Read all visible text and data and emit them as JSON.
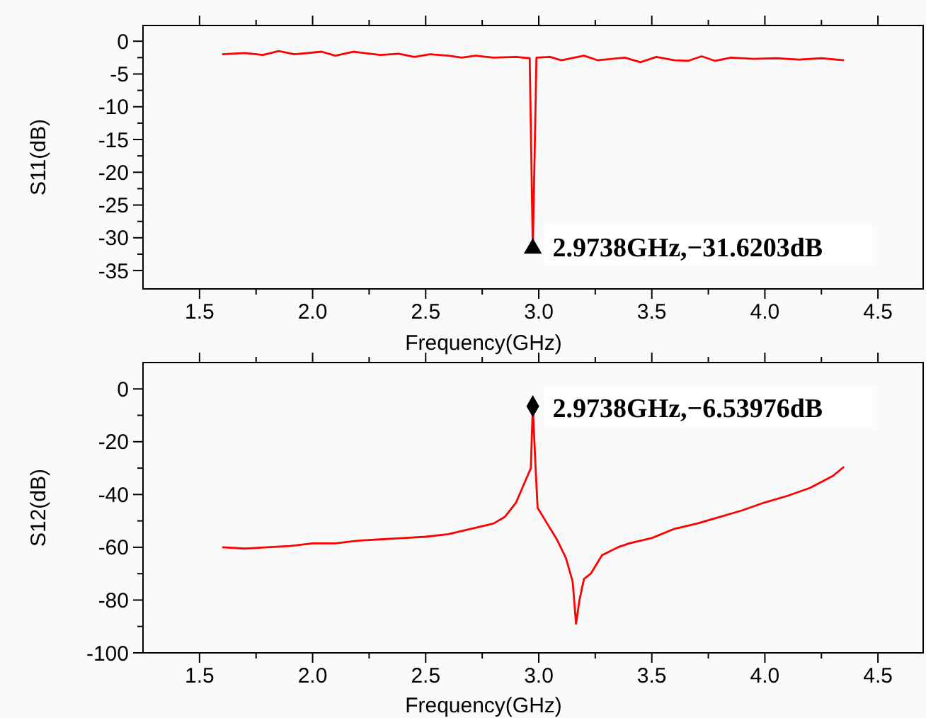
{
  "chart_data": [
    {
      "type": "line",
      "xlabel": "Frequency(GHz)",
      "ylabel": "S11(dB)",
      "xlim": [
        1.25,
        4.7
      ],
      "ylim": [
        -37.8,
        2.4
      ],
      "xticks": [
        1.5,
        {
          "value": 1.75,
          "label": null
        },
        {
          "value": 2,
          "label": "2.0"
        },
        {
          "value": 2.25,
          "label": null
        },
        2.5,
        {
          "value": 2.75,
          "label": null
        },
        {
          "value": 3,
          "label": "3.0"
        },
        {
          "value": 3.25,
          "label": null
        },
        3.5,
        {
          "value": 3.75,
          "label": null
        },
        {
          "value": 4,
          "label": "4.0"
        },
        {
          "value": 4.25,
          "label": null
        },
        4.5
      ],
      "yticks": [
        0,
        {
          "value": -2.5,
          "label": null
        },
        -5,
        {
          "value": -7.5,
          "label": null
        },
        -10,
        {
          "value": -12.5,
          "label": null
        },
        -15,
        {
          "value": -17.5,
          "label": null
        },
        -20,
        {
          "value": -22.5,
          "label": null
        },
        -25,
        {
          "value": -27.5,
          "label": null
        },
        -30,
        {
          "value": -32.5,
          "label": null
        },
        -35
      ],
      "grid": false,
      "series": [
        {
          "color": "#ff0000",
          "marker": "none",
          "x": [
            1.6,
            1.7,
            1.78,
            1.85,
            1.92,
            2.04,
            2.1,
            2.18,
            2.3,
            2.38,
            2.45,
            2.52,
            2.6,
            2.66,
            2.72,
            2.8,
            2.9,
            2.96,
            2.9738,
            2.99,
            3.05,
            3.1,
            3.2,
            3.26,
            3.38,
            3.45,
            3.52,
            3.6,
            3.66,
            3.72,
            3.78,
            3.85,
            3.95,
            4.05,
            4.15,
            4.25,
            4.35
          ],
          "values": [
            -2,
            -1.8,
            -2.1,
            -1.5,
            -2,
            -1.6,
            -2.2,
            -1.6,
            -2.1,
            -1.9,
            -2.4,
            -2,
            -2.2,
            -2.5,
            -2.2,
            -2.5,
            -2.4,
            -2.6,
            -31.6203,
            -2.5,
            -2.4,
            -2.9,
            -2.2,
            -2.9,
            -2.5,
            -3.2,
            -2.4,
            -2.9,
            -3.0,
            -2.3,
            -3.0,
            -2.5,
            -2.7,
            -2.6,
            -2.8,
            -2.6,
            -2.9
          ]
        },
        {
          "type": "scatter",
          "color": "#000000",
          "marker": "triangle",
          "x": [
            2.9738
          ],
          "values": [
            -31.6203
          ]
        }
      ],
      "annotations": [
        {
          "text": "2.9738GHz,−31.6203dB",
          "x": 2.9738,
          "y": -31.6203
        }
      ]
    },
    {
      "type": "line",
      "xlabel": "Frequency(GHz)",
      "ylabel": "S12(dB)",
      "xlim": [
        1.25,
        4.7
      ],
      "ylim": [
        -100,
        10
      ],
      "xticks": [
        1.5,
        {
          "value": 1.75,
          "label": null
        },
        {
          "value": 2,
          "label": "2.0"
        },
        {
          "value": 2.25,
          "label": null
        },
        2.5,
        {
          "value": 2.75,
          "label": null
        },
        {
          "value": 3,
          "label": "3.0"
        },
        {
          "value": 3.25,
          "label": null
        },
        3.5,
        {
          "value": 3.75,
          "label": null
        },
        {
          "value": 4,
          "label": "4.0"
        },
        {
          "value": 4.25,
          "label": null
        },
        4.5
      ],
      "yticks": [
        0,
        {
          "value": -10,
          "label": null
        },
        -20,
        {
          "value": -30,
          "label": null
        },
        -40,
        {
          "value": -50,
          "label": null
        },
        -60,
        {
          "value": -70,
          "label": null
        },
        -80,
        {
          "value": -90,
          "label": null
        },
        -100
      ],
      "grid": false,
      "series": [
        {
          "color": "#ff0000",
          "marker": "none",
          "x": [
            1.6,
            1.7,
            1.8,
            1.9,
            2.0,
            2.1,
            2.2,
            2.3,
            2.4,
            2.5,
            2.6,
            2.7,
            2.8,
            2.85,
            2.9,
            2.95,
            2.965,
            2.9738,
            2.985,
            2.995,
            3.03,
            3.08,
            3.12,
            3.15,
            3.165,
            3.18,
            3.2,
            3.23,
            3.28,
            3.35,
            3.4,
            3.5,
            3.6,
            3.7,
            3.8,
            3.9,
            4.0,
            4.1,
            4.2,
            4.3,
            4.35
          ],
          "values": [
            -60,
            -60.5,
            -60,
            -59.5,
            -58.5,
            -58.5,
            -57.5,
            -57,
            -56.5,
            -56,
            -55,
            -53,
            -51,
            -48.5,
            -43,
            -33,
            -30,
            -6.53976,
            -28,
            -45,
            -50,
            -57,
            -64,
            -73,
            -89,
            -80,
            -72,
            -70,
            -63,
            -60,
            -58.5,
            -56.5,
            -53,
            -51,
            -48.5,
            -46,
            -43,
            -40.5,
            -37.5,
            -33,
            -29.5
          ]
        },
        {
          "type": "scatter",
          "color": "#000000",
          "marker": "diamond",
          "x": [
            2.9738
          ],
          "values": [
            -6.53976
          ]
        }
      ],
      "annotations": [
        {
          "text": "2.9738GHz,−6.53976dB",
          "x": 2.9738,
          "y": -6.53976
        }
      ]
    }
  ]
}
